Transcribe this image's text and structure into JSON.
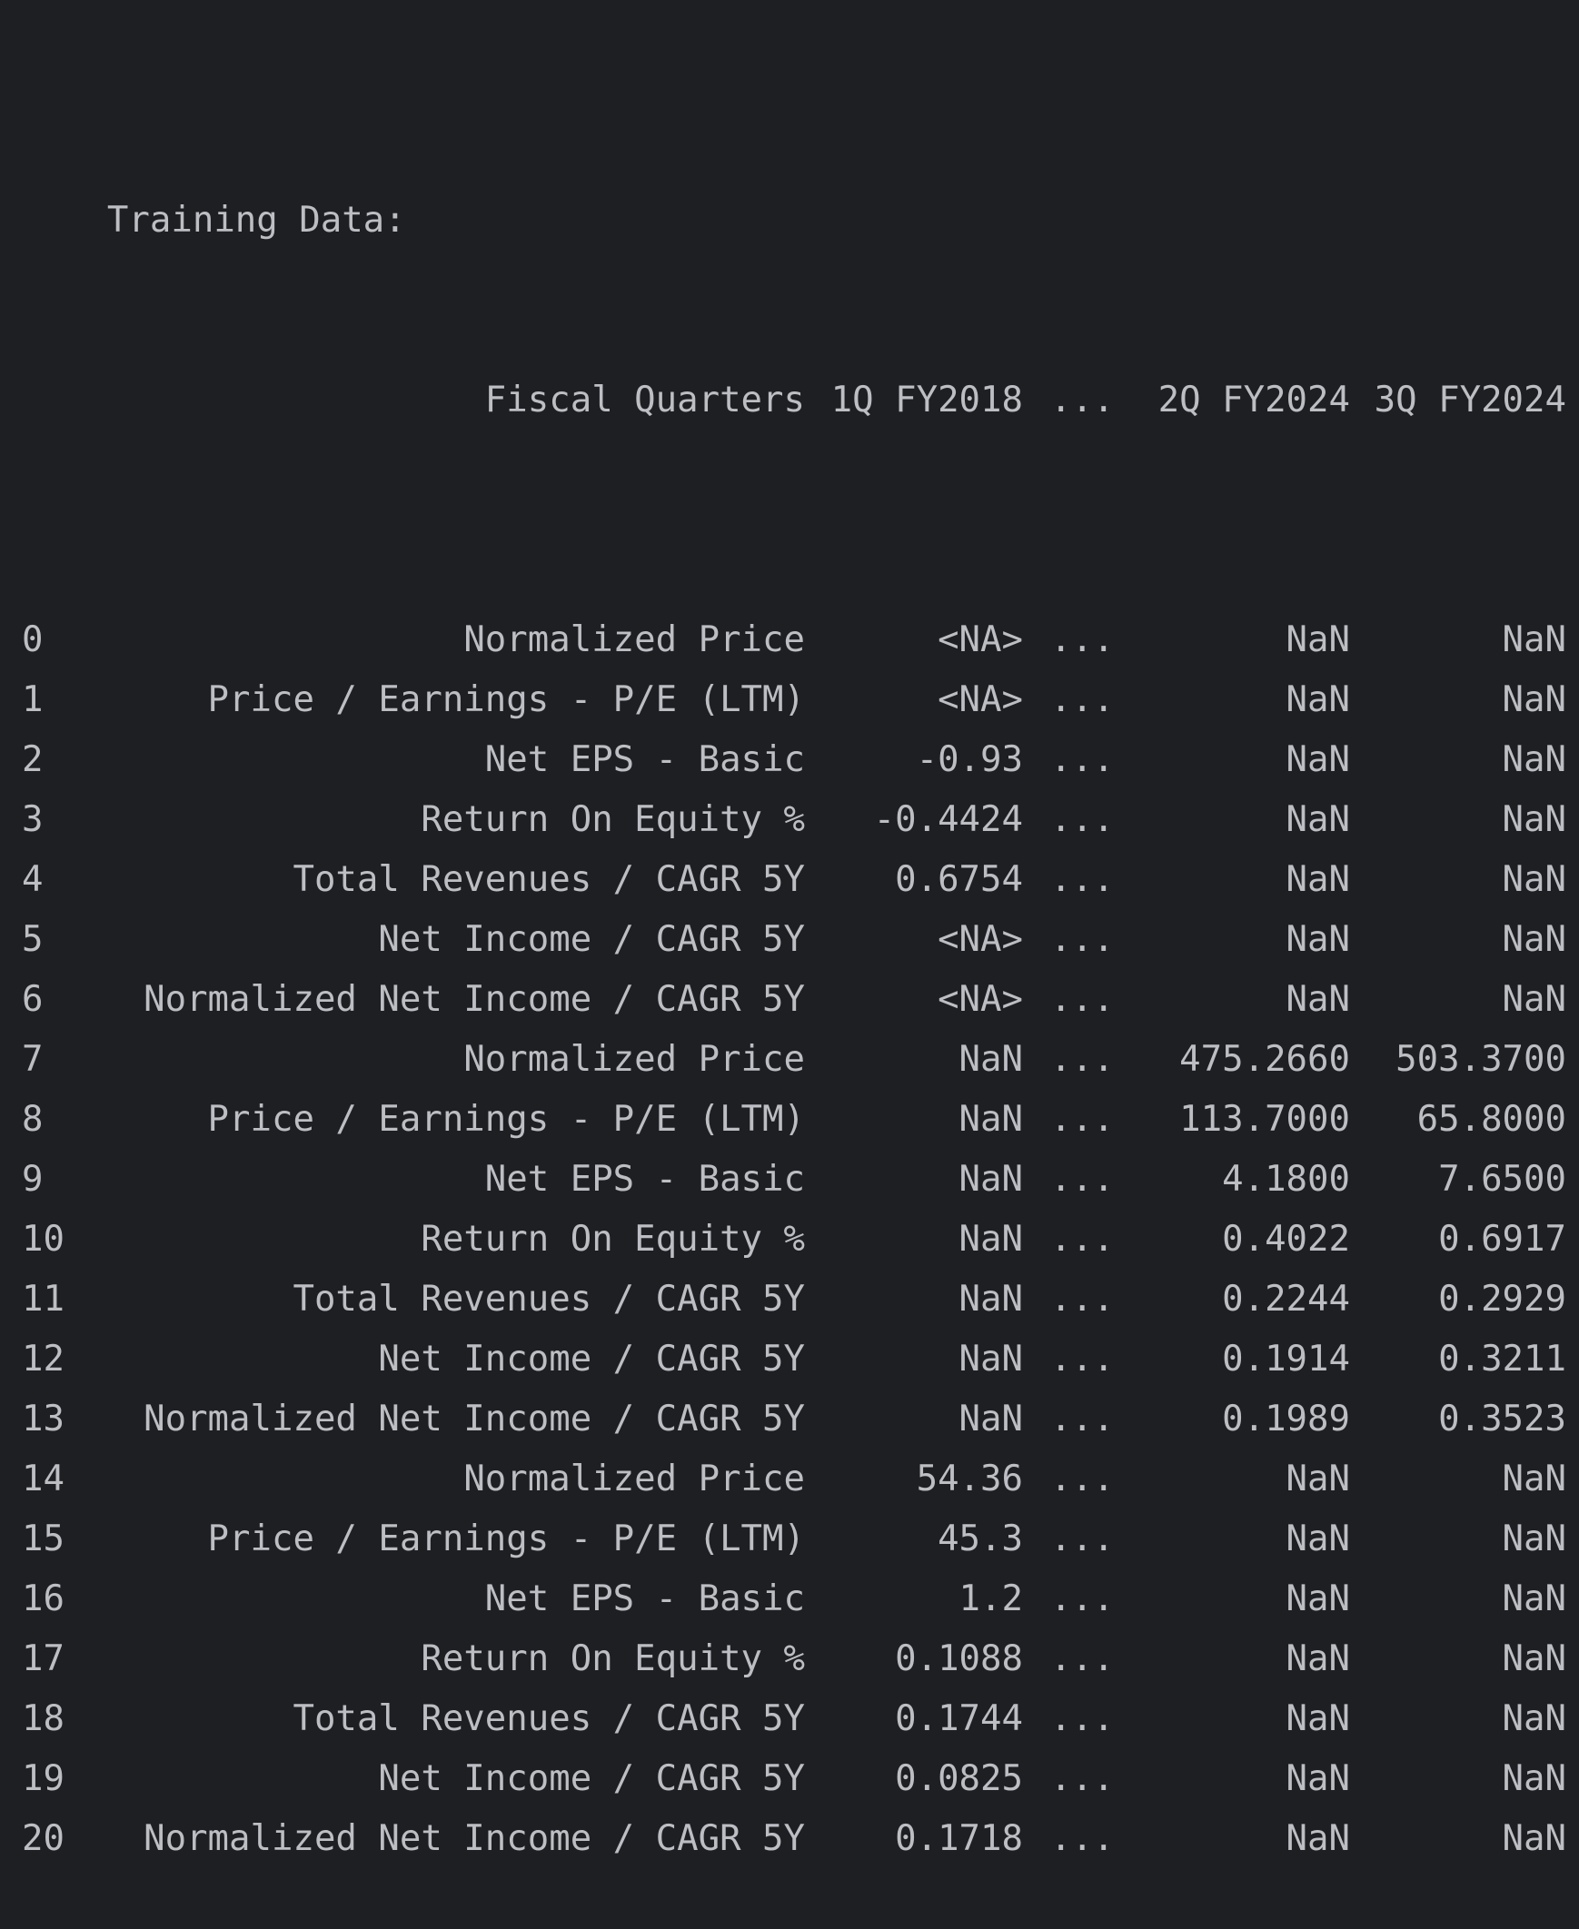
{
  "console": {
    "heading": "Training Data:",
    "columns": {
      "label": "Fiscal Quarters",
      "col1": "1Q FY2018",
      "ellipsis": "...",
      "col2": "2Q FY2024",
      "col3": "3Q FY2024"
    },
    "rows": [
      {
        "idx": "0",
        "label": "Normalized Price",
        "v1": "<NA>",
        "ellipsis": "...",
        "v2": "NaN",
        "v3": "NaN"
      },
      {
        "idx": "1",
        "label": "Price / Earnings - P/E (LTM)",
        "v1": "<NA>",
        "ellipsis": "...",
        "v2": "NaN",
        "v3": "NaN"
      },
      {
        "idx": "2",
        "label": "Net EPS - Basic",
        "v1": "-0.93",
        "ellipsis": "...",
        "v2": "NaN",
        "v3": "NaN"
      },
      {
        "idx": "3",
        "label": "Return On Equity %",
        "v1": "-0.4424",
        "ellipsis": "...",
        "v2": "NaN",
        "v3": "NaN"
      },
      {
        "idx": "4",
        "label": "Total Revenues / CAGR 5Y",
        "v1": "0.6754",
        "ellipsis": "...",
        "v2": "NaN",
        "v3": "NaN"
      },
      {
        "idx": "5",
        "label": "Net Income / CAGR 5Y",
        "v1": "<NA>",
        "ellipsis": "...",
        "v2": "NaN",
        "v3": "NaN"
      },
      {
        "idx": "6",
        "label": "Normalized Net Income / CAGR 5Y",
        "v1": "<NA>",
        "ellipsis": "...",
        "v2": "NaN",
        "v3": "NaN"
      },
      {
        "idx": "7",
        "label": "Normalized Price",
        "v1": "NaN",
        "ellipsis": "...",
        "v2": "475.2660",
        "v3": "503.3700"
      },
      {
        "idx": "8",
        "label": "Price / Earnings - P/E (LTM)",
        "v1": "NaN",
        "ellipsis": "...",
        "v2": "113.7000",
        "v3": "65.8000"
      },
      {
        "idx": "9",
        "label": "Net EPS - Basic",
        "v1": "NaN",
        "ellipsis": "...",
        "v2": "4.1800",
        "v3": "7.6500"
      },
      {
        "idx": "10",
        "label": "Return On Equity %",
        "v1": "NaN",
        "ellipsis": "...",
        "v2": "0.4022",
        "v3": "0.6917"
      },
      {
        "idx": "11",
        "label": "Total Revenues / CAGR 5Y",
        "v1": "NaN",
        "ellipsis": "...",
        "v2": "0.2244",
        "v3": "0.2929"
      },
      {
        "idx": "12",
        "label": "Net Income / CAGR 5Y",
        "v1": "NaN",
        "ellipsis": "...",
        "v2": "0.1914",
        "v3": "0.3211"
      },
      {
        "idx": "13",
        "label": "Normalized Net Income / CAGR 5Y",
        "v1": "NaN",
        "ellipsis": "...",
        "v2": "0.1989",
        "v3": "0.3523"
      },
      {
        "idx": "14",
        "label": "Normalized Price",
        "v1": "54.36",
        "ellipsis": "...",
        "v2": "NaN",
        "v3": "NaN"
      },
      {
        "idx": "15",
        "label": "Price / Earnings - P/E (LTM)",
        "v1": "45.3",
        "ellipsis": "...",
        "v2": "NaN",
        "v3": "NaN"
      },
      {
        "idx": "16",
        "label": "Net EPS - Basic",
        "v1": "1.2",
        "ellipsis": "...",
        "v2": "NaN",
        "v3": "NaN"
      },
      {
        "idx": "17",
        "label": "Return On Equity %",
        "v1": "0.1088",
        "ellipsis": "...",
        "v2": "NaN",
        "v3": "NaN"
      },
      {
        "idx": "18",
        "label": "Total Revenues / CAGR 5Y",
        "v1": "0.1744",
        "ellipsis": "...",
        "v2": "NaN",
        "v3": "NaN"
      },
      {
        "idx": "19",
        "label": "Net Income / CAGR 5Y",
        "v1": "0.0825",
        "ellipsis": "...",
        "v2": "NaN",
        "v3": "NaN"
      },
      {
        "idx": "20",
        "label": "Normalized Net Income / CAGR 5Y",
        "v1": "0.1718",
        "ellipsis": "...",
        "v2": "NaN",
        "v3": "NaN"
      }
    ]
  },
  "colors": {
    "background": "#1e1f22",
    "text": "#bcbec4"
  }
}
